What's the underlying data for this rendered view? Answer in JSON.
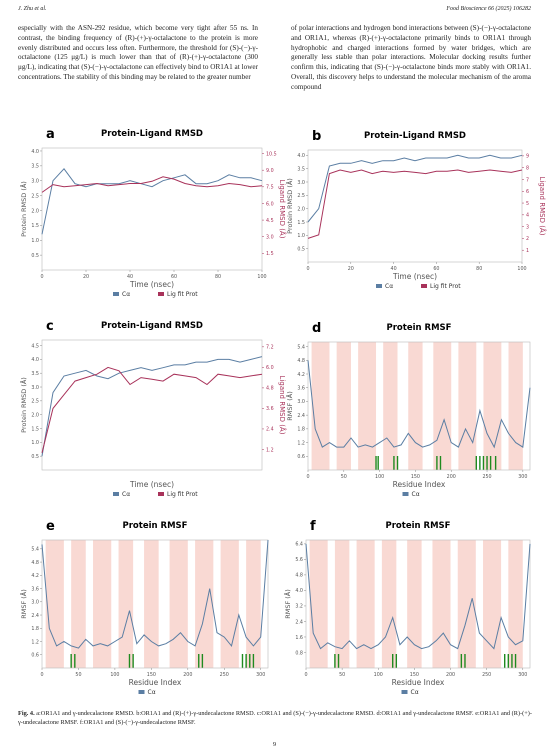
{
  "header": {
    "left": "J. Zhu et al.",
    "right": "Food Bioscience 66 (2025) 106282"
  },
  "body": {
    "left_column": "especially with the ASN-292 residue, which become very tight after 55 ns. In contrast, the binding frequency of (R)-(+)-γ-octalactone to the protein is more evenly distributed and occurs less often. Furthermore, the threshold for (S)-(−)-γ-octalactone (125 μg/L) is much lower than that of (R)-(+)-γ-octalactone (300 μg/L), indicating that (S)-(−)-γ-octalactone can effectively bind to OR1A1 at lower concentrations. The stability of this binding may be related to the greater number",
    "right_column": "of polar interactions and hydrogen bond interactions between (S)-(−)-γ-octalactone and OR1A1, whereas (R)-(+)-γ-octalactone primarily binds to OR1A1 through hydrophobic and charged interactions formed by water bridges, which are generally less stable than polar interactions. Molecular docking results further confirm this, indicating that (S)-(−)-γ-octalactone binds more stably with OR1A1. Overall, this discovery helps to understand the molecular mechanism of the aroma compound"
  },
  "figures": [
    {
      "type": "rmsd",
      "label": "a",
      "title": "Protein-Ligand RMSD",
      "xlabel": "Time (nsec)",
      "ylabel": "Protein RMSD (Å)",
      "y2label": "Ligand RMSD (Å)",
      "x": [
        0,
        5,
        10,
        15,
        20,
        25,
        30,
        35,
        40,
        45,
        50,
        55,
        60,
        65,
        70,
        75,
        80,
        85,
        90,
        95,
        100
      ],
      "xlim": [
        0,
        100
      ],
      "xticks": [
        0,
        20,
        40,
        60,
        80,
        100
      ],
      "ylim": [
        0,
        4.1
      ],
      "yticks": [
        0.5,
        {
          "value": 1,
          "label": "1.0"
        },
        1.5,
        {
          "value": 2,
          "label": "2.0"
        },
        2.5,
        {
          "value": 3,
          "label": "3.0"
        },
        3.5,
        {
          "value": 4,
          "label": "4.0"
        }
      ],
      "y2lim": [
        0,
        11
      ],
      "y2ticks": [
        1.5,
        {
          "value": 3,
          "label": "3.0"
        },
        4.5,
        {
          "value": 6,
          "label": "6.0"
        },
        7.5,
        {
          "value": 9,
          "label": "9.0"
        },
        10.5
      ],
      "series": [
        {
          "name": "Cα",
          "color": "#5b7ea3",
          "values": [
            1.2,
            3.0,
            3.4,
            2.9,
            2.8,
            2.9,
            2.9,
            2.9,
            3.0,
            2.9,
            2.8,
            3.0,
            3.1,
            3.2,
            2.9,
            2.9,
            3.0,
            3.2,
            3.1,
            3.1,
            3.0
          ]
        },
        {
          "name": "Lig fit Prot",
          "color": "#a8325a",
          "axis": "y2",
          "values": [
            7.0,
            7.7,
            7.5,
            7.6,
            7.7,
            7.8,
            7.6,
            7.7,
            7.8,
            7.8,
            8.0,
            8.4,
            8.2,
            7.8,
            7.6,
            7.5,
            7.6,
            7.8,
            7.7,
            7.5,
            7.6
          ]
        }
      ]
    },
    {
      "type": "rmsd",
      "label": "b",
      "title": "Protein-Ligand RMSD",
      "xlabel": "Time (nsec)",
      "ylabel": "Protein RMSD (Å)",
      "y2label": "Ligand RMSD (Å)",
      "x": [
        0,
        5,
        10,
        15,
        20,
        25,
        30,
        35,
        40,
        45,
        50,
        55,
        60,
        65,
        70,
        75,
        80,
        85,
        90,
        95,
        100
      ],
      "xlim": [
        0,
        100
      ],
      "xticks": [
        0,
        20,
        40,
        60,
        80,
        100
      ],
      "ylim": [
        0,
        4.2
      ],
      "yticks": [
        0.5,
        {
          "value": 1,
          "label": "1.0"
        },
        1.5,
        {
          "value": 2,
          "label": "2.0"
        },
        2.5,
        {
          "value": 3,
          "label": "3.0"
        },
        3.5,
        {
          "value": 4,
          "label": "4.0"
        }
      ],
      "y2lim": [
        0,
        9.5
      ],
      "y2ticks": [
        1,
        2,
        3,
        4,
        5,
        6,
        7,
        8,
        9
      ],
      "series": [
        {
          "name": "Cα",
          "color": "#5b7ea3",
          "values": [
            1.5,
            2.0,
            3.6,
            3.7,
            3.7,
            3.8,
            3.7,
            3.8,
            3.8,
            3.9,
            3.8,
            3.9,
            3.9,
            3.9,
            4.0,
            3.9,
            3.9,
            4.0,
            3.9,
            3.9,
            4.0
          ]
        },
        {
          "name": "Lig fit Prot",
          "color": "#a8325a",
          "axis": "y2",
          "values": [
            2.0,
            2.3,
            7.5,
            7.8,
            7.6,
            7.8,
            7.5,
            7.7,
            7.6,
            7.7,
            7.6,
            7.5,
            7.7,
            7.7,
            7.8,
            7.6,
            7.7,
            7.8,
            7.7,
            7.6,
            7.8
          ]
        }
      ]
    },
    {
      "type": "rmsd",
      "label": "c",
      "title": "Protein-Ligand RMSD",
      "xlabel": "Time (nsec)",
      "ylabel": "Protein RMSD (Å)",
      "y2label": "Ligand RMSD (Å)",
      "x": [
        0,
        5,
        10,
        15,
        20,
        25,
        30,
        35,
        40,
        45,
        50,
        55,
        60,
        65,
        70,
        75,
        80,
        85,
        90,
        95,
        100
      ],
      "xlim": [
        0,
        100
      ],
      "ylim": [
        0,
        4.7
      ],
      "yticks": [
        0.5,
        {
          "value": 1,
          "label": "1.0"
        },
        1.5,
        {
          "value": 2,
          "label": "2.0"
        },
        2.5,
        {
          "value": 3,
          "label": "3.0"
        },
        3.5,
        {
          "value": 4,
          "label": "4.0"
        },
        4.5
      ],
      "y2lim": [
        0,
        7.6
      ],
      "y2ticks": [
        1.2,
        2.4,
        3.6,
        4.8,
        {
          "value": 6,
          "label": "6.0"
        },
        7.2
      ],
      "series": [
        {
          "name": "Cα",
          "color": "#5b7ea3",
          "values": [
            0.5,
            2.8,
            3.4,
            3.5,
            3.6,
            3.4,
            3.3,
            3.5,
            3.6,
            3.7,
            3.6,
            3.7,
            3.8,
            3.8,
            3.9,
            3.9,
            4.0,
            4.0,
            3.9,
            4.0,
            4.1
          ]
        },
        {
          "name": "Lig fit Prot",
          "color": "#a8325a",
          "axis": "y2",
          "values": [
            1.0,
            3.6,
            4.4,
            5.2,
            5.4,
            5.6,
            6.0,
            5.8,
            5.0,
            5.4,
            5.3,
            5.2,
            5.6,
            5.5,
            5.4,
            5.0,
            5.6,
            5.5,
            5.4,
            5.5,
            5.6
          ]
        }
      ]
    },
    {
      "type": "rmsf",
      "label": "d",
      "title": "Protein RMSF",
      "xlabel": "Residue Index",
      "ylabel": "RMSF (Å)",
      "x": [
        0,
        10,
        20,
        30,
        40,
        50,
        60,
        70,
        80,
        90,
        100,
        110,
        120,
        130,
        140,
        150,
        160,
        170,
        180,
        190,
        200,
        210,
        220,
        230,
        240,
        250,
        260,
        270,
        280,
        290,
        300,
        310
      ],
      "xlim": [
        0,
        310
      ],
      "xticks": [
        0,
        50,
        100,
        150,
        200,
        250,
        300
      ],
      "ylim": [
        0,
        5.6
      ],
      "yticks": [
        0.6,
        1.2,
        1.8,
        2.4,
        {
          "value": 3,
          "label": "3.0"
        },
        3.6,
        4.2,
        4.8,
        5.4
      ],
      "regions": [
        [
          5,
          30
        ],
        [
          40,
          60
        ],
        [
          70,
          95
        ],
        [
          105,
          125
        ],
        [
          140,
          160
        ],
        [
          175,
          200
        ],
        [
          210,
          235
        ],
        [
          245,
          270
        ],
        [
          280,
          300
        ]
      ],
      "contacts": [
        95,
        98,
        120,
        125,
        180,
        185,
        235,
        240,
        245,
        250,
        255,
        262
      ],
      "series": [
        {
          "name": "Cα",
          "color": "#5b7ea3",
          "values": [
            4.8,
            1.8,
            1.0,
            1.2,
            1.0,
            1.0,
            1.4,
            1.0,
            1.1,
            1.0,
            1.2,
            1.4,
            1.0,
            1.1,
            1.6,
            1.2,
            1.0,
            1.1,
            1.3,
            2.2,
            1.2,
            1.0,
            1.8,
            1.2,
            2.6,
            1.6,
            1.0,
            2.2,
            1.6,
            1.2,
            1.0,
            3.6
          ]
        }
      ]
    },
    {
      "type": "rmsf",
      "label": "e",
      "title": "Protein RMSF",
      "xlabel": "Residue Index",
      "ylabel": "RMSF (Å)",
      "x": [
        0,
        10,
        20,
        30,
        40,
        50,
        60,
        70,
        80,
        90,
        100,
        110,
        120,
        130,
        140,
        150,
        160,
        170,
        180,
        190,
        200,
        210,
        220,
        230,
        240,
        250,
        260,
        270,
        280,
        290,
        300,
        310
      ],
      "xlim": [
        0,
        310
      ],
      "xticks": [
        0,
        50,
        100,
        150,
        200,
        250,
        300
      ],
      "ylim": [
        0,
        5.8
      ],
      "yticks": [
        0.6,
        1.2,
        1.8,
        2.4,
        {
          "value": 3,
          "label": "3.0"
        },
        3.6,
        4.2,
        4.8,
        5.4
      ],
      "regions": [
        [
          5,
          30
        ],
        [
          40,
          60
        ],
        [
          70,
          95
        ],
        [
          105,
          125
        ],
        [
          140,
          160
        ],
        [
          175,
          200
        ],
        [
          210,
          235
        ],
        [
          245,
          270
        ],
        [
          280,
          300
        ]
      ],
      "contacts": [
        40,
        45,
        120,
        125,
        215,
        220,
        275,
        280,
        285,
        290
      ],
      "series": [
        {
          "name": "Cα",
          "color": "#5b7ea3",
          "values": [
            5.6,
            1.8,
            1.0,
            1.2,
            1.0,
            0.9,
            1.3,
            1.0,
            1.1,
            1.0,
            1.2,
            1.4,
            2.6,
            1.1,
            1.5,
            1.2,
            1.0,
            1.1,
            1.3,
            1.6,
            1.2,
            1.0,
            2.0,
            3.6,
            1.6,
            1.4,
            1.0,
            2.4,
            1.4,
            1.0,
            1.4,
            5.8
          ]
        }
      ]
    },
    {
      "type": "rmsf",
      "label": "f",
      "title": "Protein RMSF",
      "xlabel": "Residue Index",
      "ylabel": "RMSF (Å)",
      "x": [
        0,
        10,
        20,
        30,
        40,
        50,
        60,
        70,
        80,
        90,
        100,
        110,
        120,
        130,
        140,
        150,
        160,
        170,
        180,
        190,
        200,
        210,
        220,
        230,
        240,
        250,
        260,
        270,
        280,
        290,
        300,
        310
      ],
      "xlim": [
        0,
        310
      ],
      "xticks": [
        0,
        50,
        100,
        150,
        200,
        250,
        300
      ],
      "ylim": [
        0,
        6.6
      ],
      "yticks": [
        0.8,
        1.6,
        2.4,
        3.2,
        {
          "value": 4,
          "label": "4.0"
        },
        4.8,
        5.6,
        6.4
      ],
      "regions": [
        [
          5,
          30
        ],
        [
          40,
          60
        ],
        [
          70,
          95
        ],
        [
          105,
          125
        ],
        [
          140,
          160
        ],
        [
          175,
          200
        ],
        [
          210,
          235
        ],
        [
          245,
          270
        ],
        [
          280,
          300
        ]
      ],
      "contacts": [
        40,
        45,
        120,
        125,
        215,
        220,
        275,
        280,
        285,
        290
      ],
      "series": [
        {
          "name": "Cα",
          "color": "#5b7ea3",
          "values": [
            6.4,
            1.8,
            1.0,
            1.3,
            1.1,
            1.0,
            1.4,
            1.0,
            1.2,
            1.0,
            1.2,
            1.6,
            2.6,
            1.2,
            1.6,
            1.2,
            1.0,
            1.1,
            1.4,
            1.8,
            1.2,
            1.0,
            2.2,
            3.6,
            1.8,
            1.4,
            1.0,
            2.6,
            1.6,
            1.2,
            1.4,
            6.4
          ]
        }
      ]
    }
  ],
  "caption": {
    "label": "Fig. 4.",
    "text": "a:OR1A1 and γ-undecalactone RMSD. b:OR1A1 and (R)-(+)-γ-undecalactone RMSD. c:OR1A1 and (S)-(−)-γ-undecalactone RMSD. d:OR1A1 and γ-undecalactone RMSF. e:OR1A1 and (R)-(+)-γ-undecalactone RMSF. f:OR1A1 and (S)-(−)-γ-undecalactone RMSF."
  },
  "page_number": "9"
}
